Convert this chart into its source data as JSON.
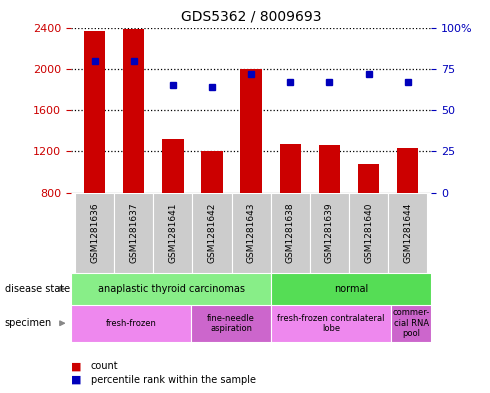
{
  "title": "GDS5362 / 8009693",
  "samples": [
    "GSM1281636",
    "GSM1281637",
    "GSM1281641",
    "GSM1281642",
    "GSM1281643",
    "GSM1281638",
    "GSM1281639",
    "GSM1281640",
    "GSM1281644"
  ],
  "counts": [
    2370,
    2390,
    1320,
    1200,
    2000,
    1270,
    1260,
    1080,
    1230
  ],
  "percentile_ranks": [
    80,
    80,
    65,
    64,
    72,
    67,
    67,
    72,
    67
  ],
  "ylim_left": [
    800,
    2400
  ],
  "ylim_right": [
    0,
    100
  ],
  "yticks_left": [
    800,
    1200,
    1600,
    2000,
    2400
  ],
  "yticks_right": [
    0,
    25,
    50,
    75,
    100
  ],
  "bar_color": "#cc0000",
  "dot_color": "#0000bb",
  "disease_state_groups": [
    {
      "label": "anaplastic thyroid carcinomas",
      "start": 0,
      "end": 5,
      "color": "#88ee88"
    },
    {
      "label": "normal",
      "start": 5,
      "end": 9,
      "color": "#55dd55"
    }
  ],
  "specimen_groups": [
    {
      "label": "fresh-frozen",
      "start": 0,
      "end": 3,
      "color": "#ee88ee"
    },
    {
      "label": "fine-needle\naspiration",
      "start": 3,
      "end": 5,
      "color": "#cc66cc"
    },
    {
      "label": "fresh-frozen contralateral\nlobe",
      "start": 5,
      "end": 8,
      "color": "#ee88ee"
    },
    {
      "label": "commer-\ncial RNA\npool",
      "start": 8,
      "end": 9,
      "color": "#cc66cc"
    }
  ],
  "bar_width": 0.55,
  "axis_label_color_left": "#cc0000",
  "axis_label_color_right": "#0000bb",
  "fig_width": 4.9,
  "fig_height": 3.93,
  "dpi": 100
}
